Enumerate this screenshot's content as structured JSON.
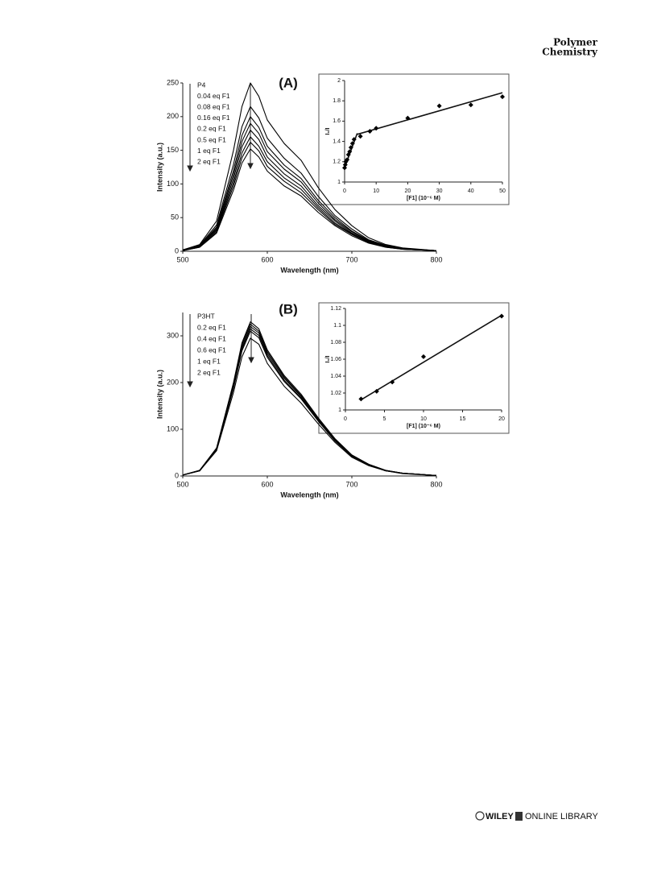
{
  "header": {
    "line1": "Polymer",
    "line2": "Chemistry"
  },
  "chart_data": [
    {
      "type": "line",
      "title": "(A)",
      "x_label": "Wavelength (nm)",
      "y_label": "Intensity (a.u.)",
      "x": [
        500,
        520,
        540,
        560,
        570,
        580,
        590,
        600,
        620,
        640,
        660,
        680,
        700,
        720,
        740,
        760,
        800
      ],
      "xlim": [
        500,
        800
      ],
      "xticks": [
        500,
        600,
        700,
        800
      ],
      "ylim": [
        0,
        250
      ],
      "yticks": [
        0,
        50,
        100,
        150,
        200,
        250
      ],
      "series": [
        {
          "name": "P4",
          "color": "#000000",
          "values": [
            2,
            10,
            45,
            150,
            215,
            250,
            230,
            195,
            160,
            135,
            95,
            62,
            38,
            20,
            10,
            5,
            1
          ]
        },
        {
          "name": "0.04 eq F1",
          "color": "#000000",
          "values": [
            2,
            9,
            39,
            129,
            185,
            215,
            198,
            168,
            138,
            116,
            82,
            53,
            33,
            17,
            9,
            4,
            1
          ]
        },
        {
          "name": "0.08 eq F1",
          "color": "#000000",
          "values": [
            2,
            8,
            36,
            120,
            172,
            200,
            184,
            156,
            128,
            108,
            76,
            50,
            30,
            16,
            8,
            4,
            1
          ]
        },
        {
          "name": "0.16 eq F1",
          "color": "#000000",
          "values": [
            2,
            8,
            34,
            114,
            163,
            190,
            175,
            148,
            122,
            103,
            72,
            47,
            29,
            15,
            8,
            4,
            1
          ]
        },
        {
          "name": "0.2 eq F1",
          "color": "#000000",
          "values": [
            1,
            7,
            32,
            108,
            155,
            180,
            166,
            140,
            115,
            97,
            68,
            45,
            27,
            14,
            7,
            4,
            1
          ]
        },
        {
          "name": "0.5 eq F1",
          "color": "#000000",
          "values": [
            1,
            7,
            31,
            102,
            146,
            170,
            156,
            133,
            109,
            92,
            65,
            42,
            26,
            14,
            7,
            3,
            1
          ]
        },
        {
          "name": "1 eq F1",
          "color": "#000000",
          "values": [
            1,
            6,
            29,
            97,
            139,
            162,
            149,
            126,
            104,
            87,
            62,
            40,
            25,
            13,
            6,
            3,
            1
          ]
        },
        {
          "name": "2 eq F1",
          "color": "#000000",
          "values": [
            1,
            6,
            27,
            91,
            131,
            152,
            140,
            119,
            97,
            82,
            58,
            38,
            23,
            12,
            6,
            3,
            1
          ]
        }
      ]
    },
    {
      "type": "scatter",
      "x_label": "[F1] (10⁻⁶ M)",
      "y_label": "I₀/I",
      "color": "#000000",
      "xlim": [
        0,
        50
      ],
      "xticks": [
        0,
        10,
        20,
        30,
        40,
        50
      ],
      "ylim": [
        1,
        2
      ],
      "yticks": [
        1,
        1.2,
        1.4,
        1.6,
        1.8,
        2
      ],
      "x": [
        0,
        0.2,
        0.4,
        0.8,
        1.2,
        1.6,
        2,
        2.5,
        3,
        5,
        8,
        10,
        20,
        30,
        40,
        50
      ],
      "values": [
        1.14,
        1.17,
        1.2,
        1.22,
        1.27,
        1.3,
        1.34,
        1.38,
        1.42,
        1.45,
        1.5,
        1.53,
        1.63,
        1.75,
        1.76,
        1.84
      ],
      "fit_lines": [
        {
          "x": [
            0,
            4
          ],
          "values": [
            1.14,
            1.48
          ]
        },
        {
          "x": [
            4,
            50
          ],
          "values": [
            1.47,
            1.88
          ]
        }
      ]
    },
    {
      "type": "line",
      "title": "(B)",
      "x_label": "Wavelength (nm)",
      "y_label": "Intensity (a.u.)",
      "x": [
        500,
        520,
        540,
        560,
        570,
        580,
        590,
        600,
        620,
        640,
        660,
        680,
        700,
        720,
        740,
        760,
        800
      ],
      "xlim": [
        500,
        800
      ],
      "xticks": [
        500,
        600,
        700,
        800
      ],
      "ylim": [
        0,
        350
      ],
      "yticks": [
        0,
        100,
        200,
        300
      ],
      "series": [
        {
          "name": "P3HT",
          "color": "#000000",
          "values": [
            2,
            12,
            60,
            200,
            285,
            330,
            315,
            270,
            215,
            175,
            125,
            80,
            45,
            25,
            12,
            6,
            1
          ]
        },
        {
          "name": "0.2 eq F1",
          "color": "#000000",
          "values": [
            2,
            12,
            59,
            197,
            281,
            325,
            310,
            266,
            212,
            172,
            123,
            79,
            44,
            25,
            12,
            6,
            1
          ]
        },
        {
          "name": "0.4 eq F1",
          "color": "#000000",
          "values": [
            2,
            12,
            58,
            194,
            276,
            320,
            306,
            262,
            209,
            170,
            121,
            78,
            44,
            24,
            12,
            6,
            1
          ]
        },
        {
          "name": "0.6 eq F1",
          "color": "#000000",
          "values": [
            2,
            11,
            57,
            191,
            272,
            315,
            301,
            258,
            205,
            167,
            119,
            76,
            43,
            24,
            11,
            6,
            1
          ]
        },
        {
          "name": "1 eq F1",
          "color": "#000000",
          "values": [
            2,
            11,
            56,
            188,
            268,
            310,
            296,
            254,
            202,
            165,
            118,
            75,
            42,
            24,
            11,
            6,
            1
          ]
        },
        {
          "name": "2 eq F1",
          "color": "#000000",
          "values": [
            2,
            11,
            54,
            179,
            255,
            295,
            282,
            241,
            192,
            156,
            112,
            72,
            40,
            22,
            11,
            5,
            1
          ]
        }
      ]
    },
    {
      "type": "scatter",
      "x_label": "[F1] (10⁻⁶ M)",
      "y_label": "I₀/I",
      "color": "#000000",
      "xlim": [
        0,
        20
      ],
      "xticks": [
        0,
        5,
        10,
        15,
        20
      ],
      "ylim": [
        1,
        1.12
      ],
      "yticks": [
        1,
        1.02,
        1.04,
        1.06,
        1.08,
        1.1,
        1.12
      ],
      "x": [
        2,
        4,
        6,
        10,
        20
      ],
      "values": [
        1.013,
        1.022,
        1.033,
        1.063,
        1.111
      ],
      "fit_lines": [
        {
          "x": [
            2,
            20
          ],
          "values": [
            1.012,
            1.112
          ]
        }
      ]
    }
  ],
  "footer": {
    "brand": "WILEY",
    "library": "ONLINE LIBRARY"
  }
}
